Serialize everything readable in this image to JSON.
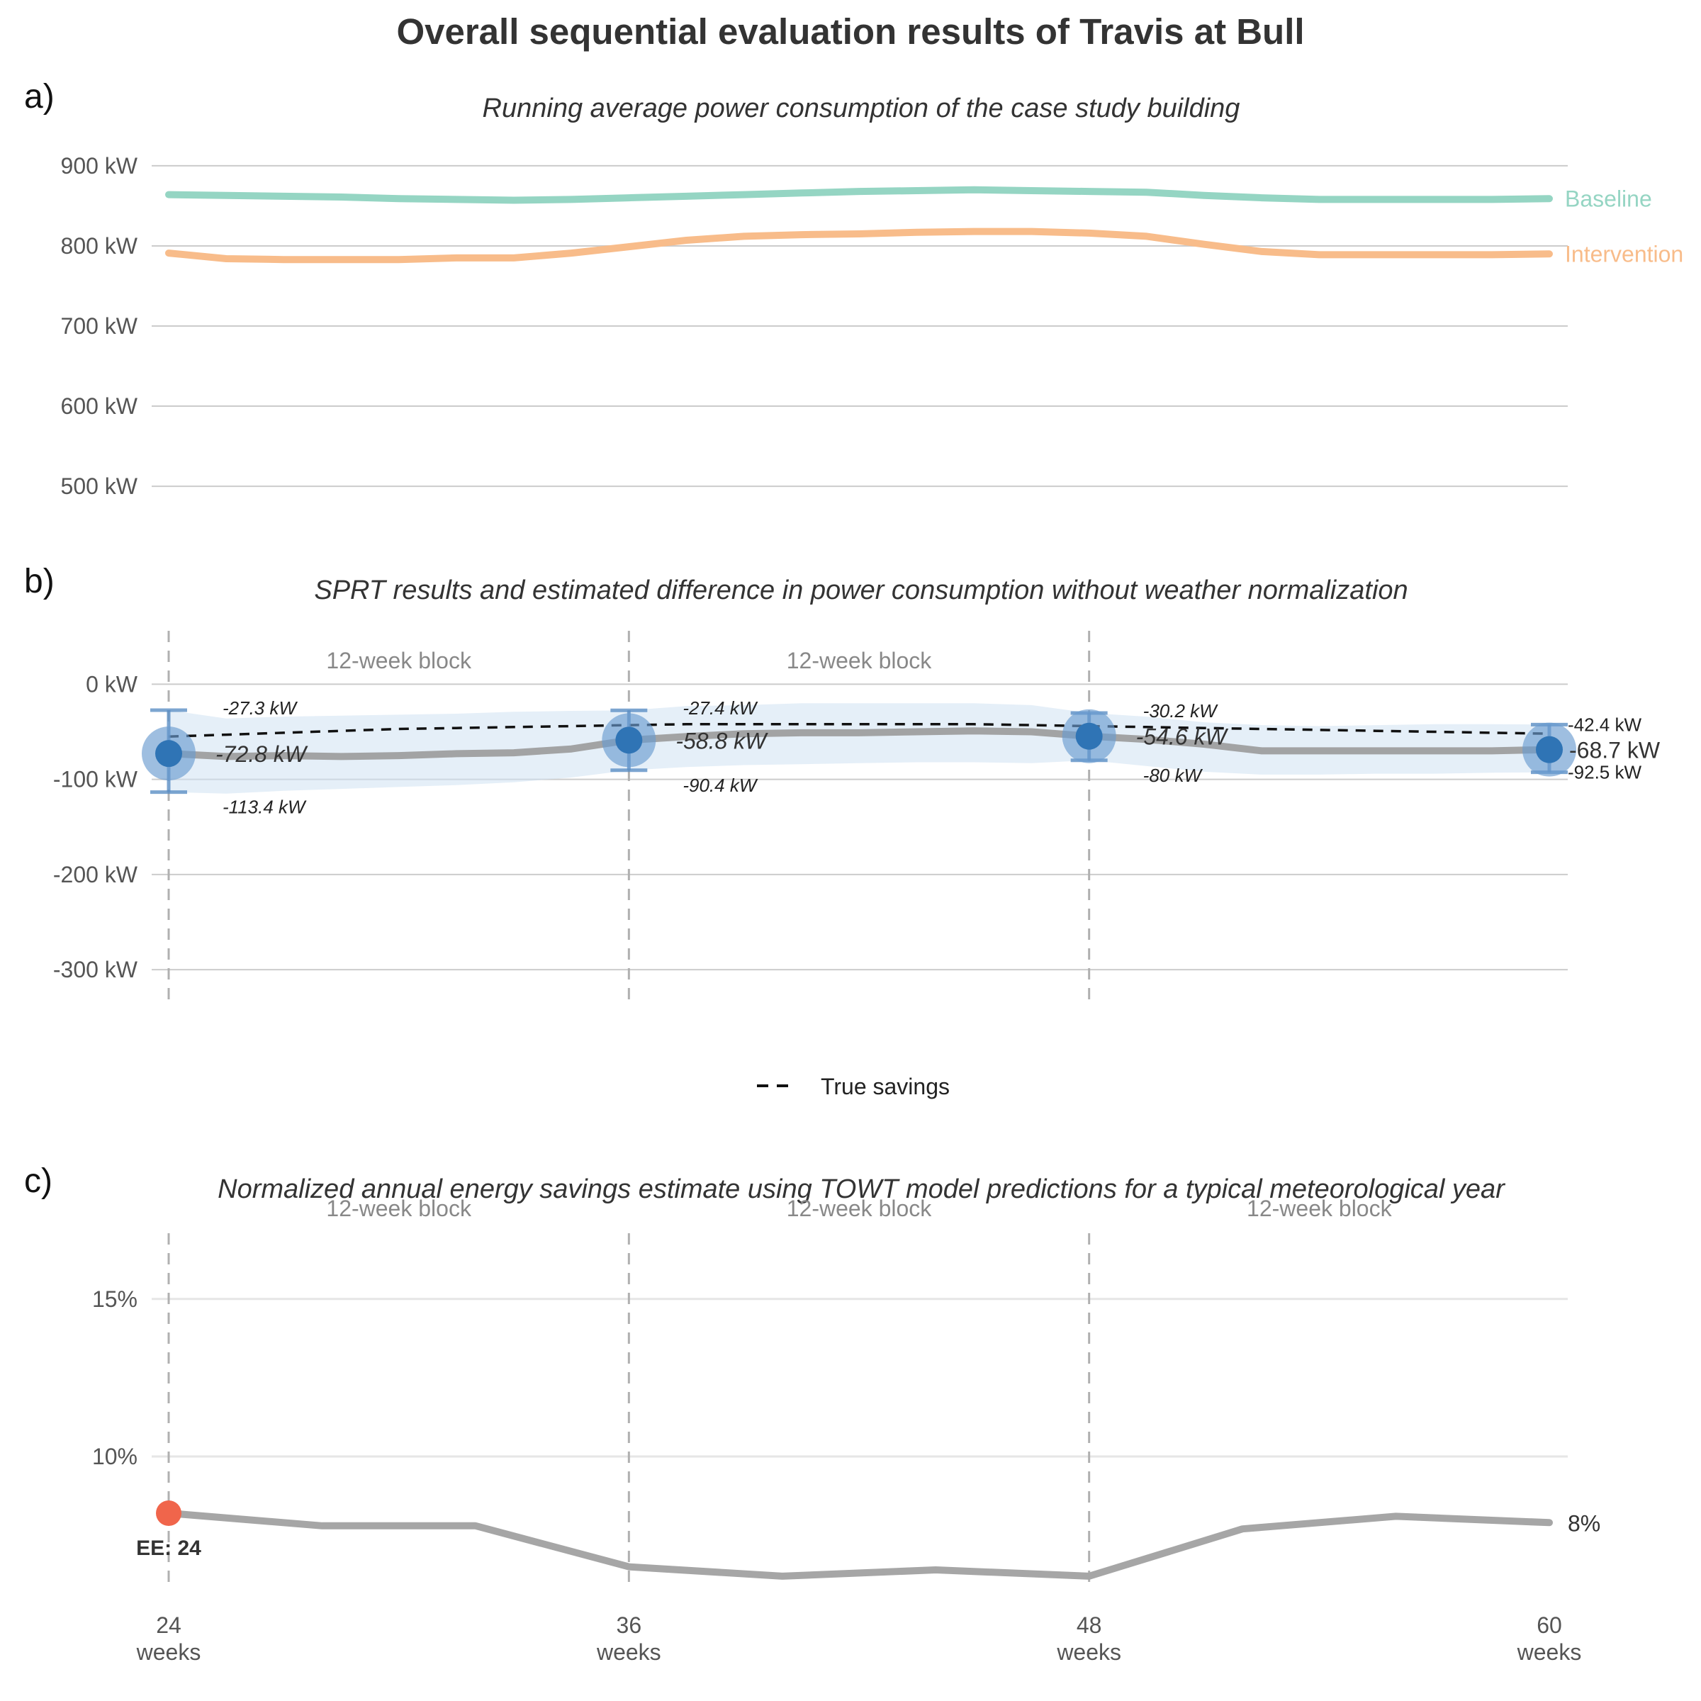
{
  "title": "Overall sequential evaluation results of Travis at Bull",
  "chart_data": [
    {
      "panel": "a)",
      "type": "line",
      "title": "Running average power consumption of the case study building",
      "ylim": [
        470,
        930
      ],
      "yticks": [
        500,
        600,
        700,
        800,
        900
      ],
      "ytick_labels": [
        "500 kW",
        "600 kW",
        "700 kW",
        "800 kW",
        "900 kW"
      ],
      "x": [
        24,
        25.5,
        27,
        28.5,
        30,
        31.5,
        33,
        34.5,
        36,
        37.5,
        39,
        40.5,
        42,
        43.5,
        45,
        46.5,
        48,
        49.5,
        51,
        52.5,
        54,
        55.5,
        57,
        58.5,
        60
      ],
      "series": [
        {
          "name": "Baseline",
          "color": "#95d5c3",
          "values": [
            864,
            863,
            862,
            861,
            859,
            858,
            857,
            858,
            860,
            862,
            864,
            866,
            868,
            869,
            870,
            869,
            868,
            867,
            863,
            860,
            858,
            858,
            858,
            858,
            859
          ]
        },
        {
          "name": "Intervention",
          "color": "#f8bc8a",
          "values": [
            791,
            784,
            783,
            783,
            783,
            785,
            785,
            791,
            799,
            807,
            812,
            814,
            815,
            817,
            818,
            818,
            816,
            812,
            802,
            793,
            789,
            789,
            789,
            789,
            790
          ]
        }
      ]
    },
    {
      "panel": "b)",
      "type": "line",
      "title": "SPRT results and estimated difference in power consumption without weather normalization",
      "ylim": [
        -320,
        45
      ],
      "yticks": [
        -300,
        -200,
        -100,
        0
      ],
      "ytick_labels": [
        "-300 kW",
        "-200 kW",
        "-100 kW",
        "0 kW"
      ],
      "block_label": "12-week block",
      "x": [
        24,
        25.5,
        27,
        28.5,
        30,
        31.5,
        33,
        34.5,
        36,
        37.5,
        39,
        40.5,
        42,
        43.5,
        45,
        46.5,
        48,
        49.5,
        51,
        52.5,
        54,
        55.5,
        57,
        58.5,
        60
      ],
      "estimate": [
        -72.8,
        -76,
        -75,
        -76,
        -75,
        -73,
        -72,
        -68,
        -58.8,
        -55,
        -52,
        -51,
        -51,
        -50,
        -49,
        -50,
        -54.6,
        -58,
        -63,
        -70,
        -70,
        -70,
        -70,
        -70,
        -68.7
      ],
      "ci_lower": [
        -113.4,
        -115,
        -112,
        -110,
        -108,
        -106,
        -103,
        -98,
        -90.4,
        -87,
        -85,
        -84,
        -83,
        -82,
        -82,
        -83,
        -80,
        -86,
        -92,
        -95,
        -95,
        -94,
        -94,
        -93,
        -92.5
      ],
      "ci_upper": [
        -27.3,
        -36,
        -34,
        -33,
        -32,
        -31,
        -29,
        -28,
        -27.4,
        -23,
        -22,
        -20,
        -20,
        -20,
        -20,
        -22,
        -30.2,
        -34,
        -40,
        -43,
        -44,
        -43,
        -42,
        -42,
        -42.4
      ],
      "true_savings": [
        -55,
        -53,
        -51,
        -49,
        -47,
        -46,
        -45,
        -44,
        -43,
        -42,
        -42,
        -42,
        -42,
        -42,
        -42,
        -43,
        -44,
        -45,
        -46,
        -47,
        -48,
        -49,
        -50,
        -51,
        -52
      ],
      "sprt_points": [
        {
          "x": 24,
          "estimate": -72.8,
          "lower": -113.4,
          "upper": -27.3,
          "label": "-72.8 kW",
          "lower_label": "-113.4 kW",
          "upper_label": "-27.3 kW"
        },
        {
          "x": 36,
          "estimate": -58.8,
          "lower": -90.4,
          "upper": -27.4,
          "label": "-58.8 kW",
          "lower_label": "-90.4 kW",
          "upper_label": "-27.4 kW"
        },
        {
          "x": 48,
          "estimate": -54.6,
          "lower": -80,
          "upper": -30.2,
          "label": "-54.6 kW",
          "lower_label": "-80 kW",
          "upper_label": "-30.2 kW"
        },
        {
          "x": 60,
          "estimate": -68.7,
          "lower": -92.5,
          "upper": -42.4,
          "label": "-68.7 kW",
          "lower_label": "-92.5 kW",
          "upper_label": "-42.4 kW"
        }
      ],
      "legend": {
        "label": "True savings",
        "style": "dashed",
        "placement": "bottom-center"
      }
    },
    {
      "panel": "c)",
      "type": "line",
      "title": "Normalized annual energy savings estimate using TOWT model predictions for a typical meteorological year",
      "ylim": [
        5.5,
        17.2
      ],
      "yticks": [
        10,
        15
      ],
      "ytick_labels": [
        "10%",
        "15%"
      ],
      "block_label": "12-week block",
      "x": [
        24,
        28,
        32,
        36,
        40,
        44,
        48,
        52,
        56,
        60
      ],
      "values": [
        8.2,
        7.8,
        7.8,
        6.5,
        6.2,
        6.4,
        6.2,
        7.7,
        8.1,
        7.9
      ],
      "end_label": "8%",
      "marker": {
        "x": 24,
        "value": 8.2,
        "label": "EE: 24",
        "color": "#f0654b"
      },
      "xticks": [
        24,
        36,
        48,
        60
      ],
      "xtick_labels": [
        [
          "24",
          "weeks"
        ],
        [
          "36",
          "weeks"
        ],
        [
          "48",
          "weeks"
        ],
        [
          "60",
          "weeks"
        ]
      ]
    }
  ]
}
